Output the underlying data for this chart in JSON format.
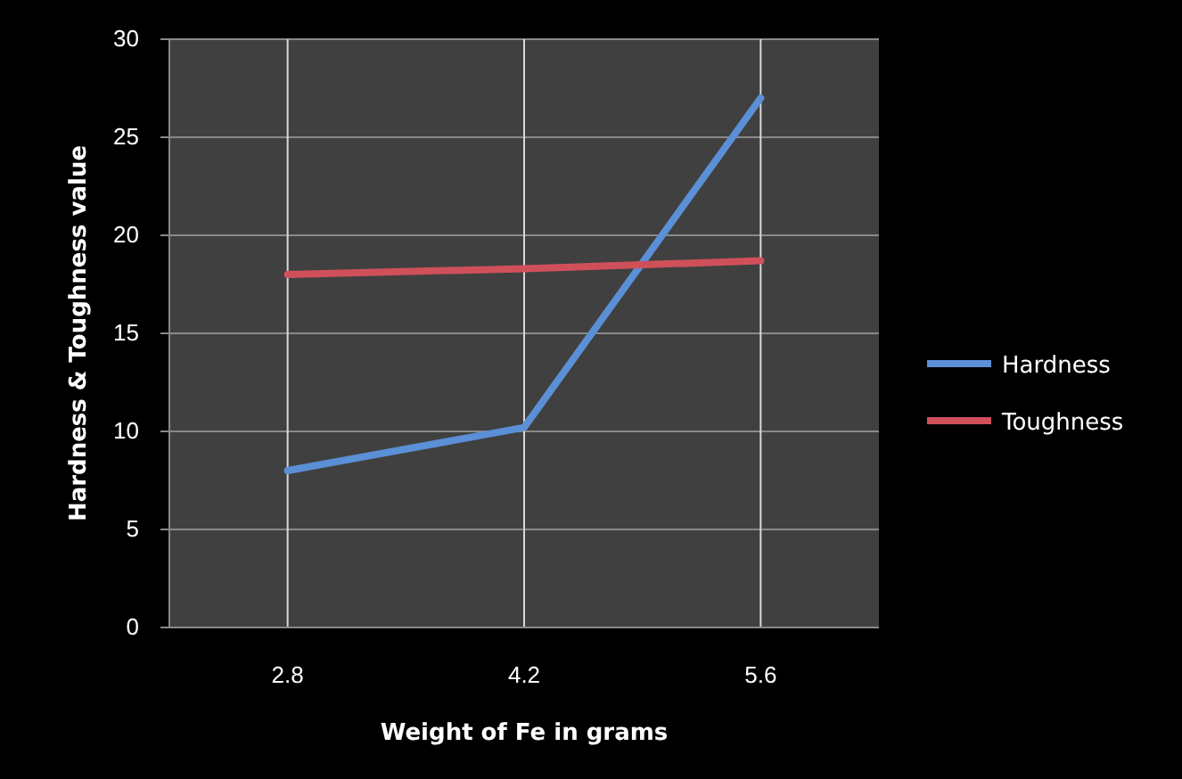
{
  "chart_data": {
    "type": "line",
    "xlabel": "Weight of Fe  in grams",
    "ylabel": "Hardness & Toughness value",
    "categories": [
      "2.8",
      "4.2",
      "5.6"
    ],
    "series": [
      {
        "name": "Hardness",
        "color": "#5b8fd6",
        "values": [
          8,
          10.2,
          27
        ]
      },
      {
        "name": "Toughness",
        "color": "#d0505a",
        "values": [
          18,
          18.3,
          18.7
        ]
      }
    ],
    "ylim": [
      0,
      30
    ],
    "yticks": [
      0,
      5,
      10,
      15,
      20,
      25,
      30
    ],
    "grid": true,
    "legend": "right",
    "marker": "none",
    "line_style": "solid"
  }
}
